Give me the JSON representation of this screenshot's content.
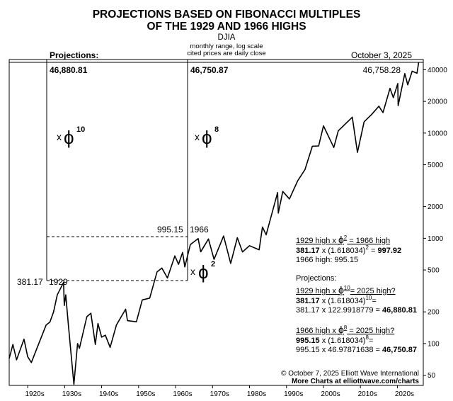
{
  "chart_data": {
    "type": "line",
    "title_line1": "PROJECTIONS BASED ON FIBONACCI MULTIPLES",
    "title_line2": "OF THE 1929 AND 1966 HIGHS",
    "subtitle": "DJIA",
    "note_line1": "monthly range, log scale",
    "note_line2": "cited prices are daily close",
    "projections_heading": "Projections:",
    "date_label": "October 3, 2025",
    "y_scale": "log",
    "ylim": [
      40,
      50000
    ],
    "xlim": [
      1915,
      2027
    ],
    "y_ticks": [
      {
        "value": 50,
        "label": "50"
      },
      {
        "value": 100,
        "label": "100"
      },
      {
        "value": 200,
        "label": "200"
      },
      {
        "value": 500,
        "label": "500"
      },
      {
        "value": 1000,
        "label": "1000"
      },
      {
        "value": 2000,
        "label": "2000"
      },
      {
        "value": 5000,
        "label": "5000"
      },
      {
        "value": 10000,
        "label": "10000"
      },
      {
        "value": 20000,
        "label": "20000"
      },
      {
        "value": 40000,
        "label": "40000"
      }
    ],
    "x_ticks": [
      {
        "value": 1920,
        "label": "1920s"
      },
      {
        "value": 1930,
        "label": "1930s"
      },
      {
        "value": 1940,
        "label": "1940s"
      },
      {
        "value": 1950,
        "label": "1950s"
      },
      {
        "value": 1960,
        "label": "1960s"
      },
      {
        "value": 1970,
        "label": "1970s"
      },
      {
        "value": 1980,
        "label": "1980s"
      },
      {
        "value": 1990,
        "label": "1990s"
      },
      {
        "value": 2000,
        "label": "2000s"
      },
      {
        "value": 2010,
        "label": "2010s"
      },
      {
        "value": 2020,
        "label": "2020s"
      }
    ],
    "series": [
      {
        "points": [
          [
            1915,
            72
          ],
          [
            1916,
            98
          ],
          [
            1917,
            70
          ],
          [
            1919,
            110
          ],
          [
            1920,
            75
          ],
          [
            1921,
            66
          ],
          [
            1923,
            100
          ],
          [
            1925,
            150
          ],
          [
            1926,
            160
          ],
          [
            1927,
            200
          ],
          [
            1928,
            290
          ],
          [
            1929.7,
            381.17
          ],
          [
            1929.9,
            230
          ],
          [
            1930.3,
            290
          ],
          [
            1931,
            150
          ],
          [
            1932.5,
            41
          ],
          [
            1933.5,
            100
          ],
          [
            1934,
            90
          ],
          [
            1936,
            180
          ],
          [
            1937.1,
            194
          ],
          [
            1938.3,
            98
          ],
          [
            1939,
            155
          ],
          [
            1940,
            115
          ],
          [
            1941,
            120
          ],
          [
            1942.3,
            92
          ],
          [
            1944,
            150
          ],
          [
            1946.5,
            212
          ],
          [
            1947,
            165
          ],
          [
            1949.4,
            161
          ],
          [
            1951,
            260
          ],
          [
            1953,
            270
          ],
          [
            1955,
            480
          ],
          [
            1956.3,
            521
          ],
          [
            1957.8,
            420
          ],
          [
            1959.8,
            680
          ],
          [
            1960.8,
            566
          ],
          [
            1961.9,
            734
          ],
          [
            1962.5,
            535
          ],
          [
            1964,
            870
          ],
          [
            1966.1,
            995.15
          ],
          [
            1966.8,
            744
          ],
          [
            1968.9,
            985
          ],
          [
            1970.4,
            631
          ],
          [
            1973,
            1051
          ],
          [
            1974.9,
            577
          ],
          [
            1976.7,
            1014
          ],
          [
            1978.1,
            742
          ],
          [
            1980,
            850
          ],
          [
            1982.6,
            777
          ],
          [
            1983.5,
            1280
          ],
          [
            1984.5,
            1080
          ],
          [
            1987.6,
            2722
          ],
          [
            1987.8,
            1738
          ],
          [
            1989,
            2790
          ],
          [
            1990.8,
            2365
          ],
          [
            1993,
            3500
          ],
          [
            1995,
            4500
          ],
          [
            1997,
            7500
          ],
          [
            1998.7,
            7539
          ],
          [
            2000,
            11722
          ],
          [
            2002.8,
            7286
          ],
          [
            2004,
            10500
          ],
          [
            2007.8,
            14164
          ],
          [
            2009.2,
            6547
          ],
          [
            2011,
            12800
          ],
          [
            2013,
            15000
          ],
          [
            2015,
            18000
          ],
          [
            2016.1,
            15660
          ],
          [
            2018,
            26600
          ],
          [
            2018.9,
            21712
          ],
          [
            2020.1,
            29551
          ],
          [
            2020.2,
            18213
          ],
          [
            2022,
            36800
          ],
          [
            2022.8,
            28725
          ],
          [
            2024,
            38700
          ],
          [
            2025.3,
            37000
          ],
          [
            2025.76,
            46758.28
          ]
        ]
      }
    ],
    "annotations": {
      "high_1929_value": "381.17",
      "high_1929_year": "1929",
      "high_1966_value": "995.15",
      "high_1966_year": "1966",
      "proj_10_value": "46,880.81",
      "proj_8_value": "46,750.87",
      "current_value": "46,758.28",
      "phi_10_x": "x",
      "phi_10_sym": "ϕ",
      "phi_10_exp": "10",
      "phi_8_x": "x",
      "phi_8_sym": "ϕ",
      "phi_8_exp": "8",
      "phi_2_x": "x",
      "phi_2_sym": "ϕ",
      "phi_2_exp": "2"
    },
    "calc": {
      "b1_line1_pre": "1929 high x ",
      "b1_line1_phi": "ϕ",
      "b1_line1_exp": "2",
      "b1_line1_post": " = 1966 high",
      "b1_line2_bold": "381.17",
      "b1_line2_mid": " x (1.618034)",
      "b1_line2_exp": "2",
      "b1_line2_eq": " = ",
      "b1_line2_res": "997.92",
      "b1_line3": "1966 high: 995.15",
      "proj_title": "Projections:",
      "b2_line1_pre": "1929 high x ",
      "b2_line1_phi": "ϕ",
      "b2_line1_exp": "10",
      "b2_line1_post": "= 2025 high?",
      "b2_line2_bold": "381.17",
      "b2_line2_mid": " x (1.618034)",
      "b2_line2_exp": "10",
      "b2_line2_end": "=",
      "b2_line3_pre": "381.17 x 122.9918779 = ",
      "b2_line3_res": "46,880.81",
      "b3_line1_pre": "1966 high x ",
      "b3_line1_phi": "ϕ",
      "b3_line1_exp": "8",
      "b3_line1_post": " = 2025 high?",
      "b3_line2_bold": "995.15",
      "b3_line2_mid": " x (1.618034)",
      "b3_line2_exp": "8",
      "b3_line2_end": "=",
      "b3_line3_pre": "995.15 x 46.97871638 = ",
      "b3_line3_res": "46,750.87"
    },
    "footer_line1": "© October 7, 2025  Elliott Wave International",
    "footer_line2": "More Charts at elliottwave.com/charts"
  }
}
